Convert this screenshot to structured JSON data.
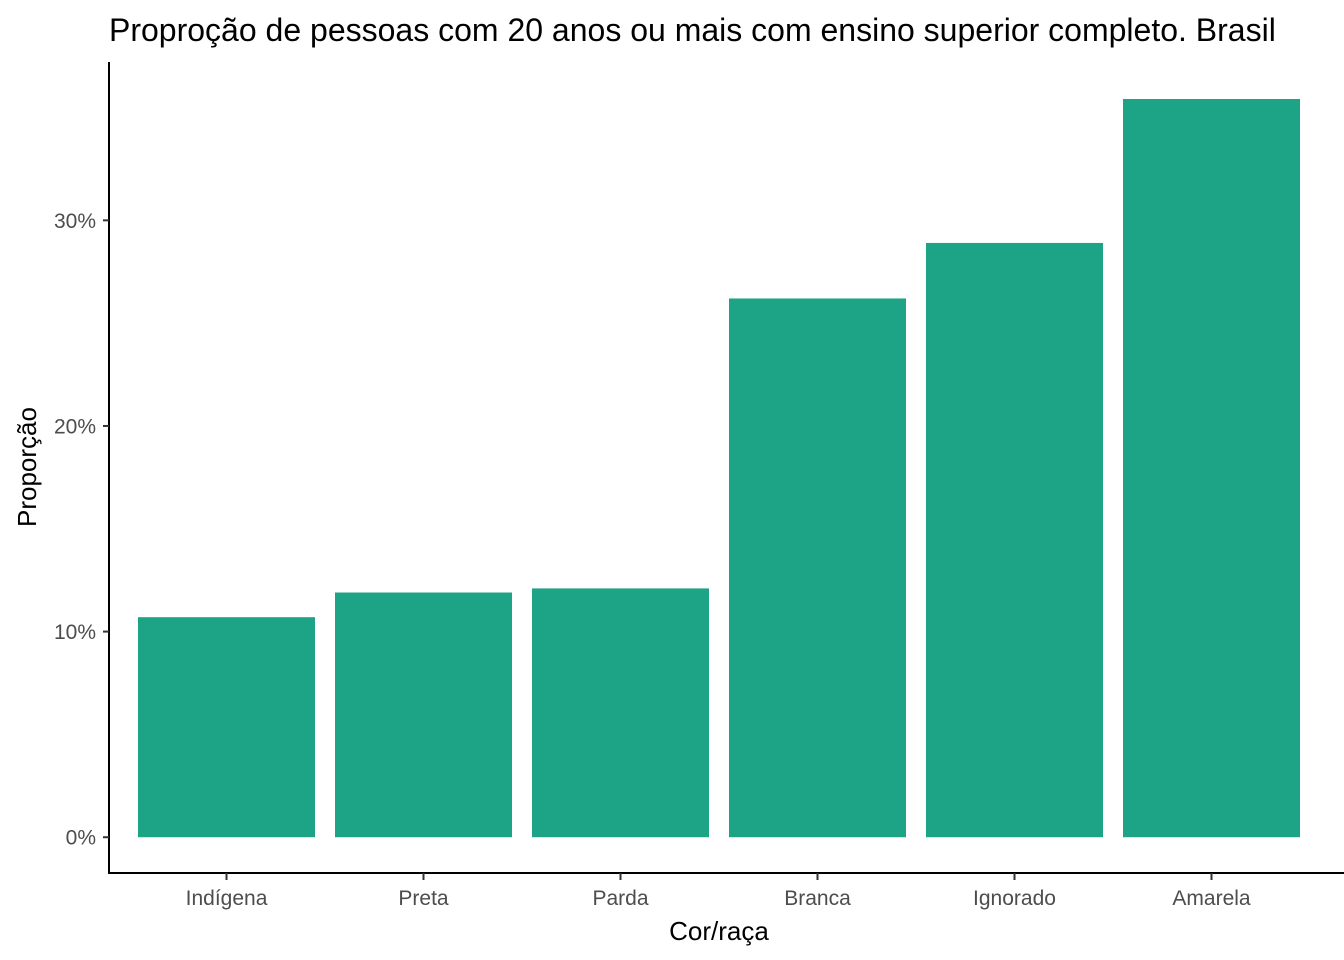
{
  "chart_data": {
    "type": "bar",
    "title": "Proproção de pessoas com 20 anos ou mais com ensino superior completo. Brasil",
    "xlabel": "Cor/raça",
    "ylabel": "Proporção",
    "categories": [
      "Indígena",
      "Preta",
      "Parda",
      "Branca",
      "Ignorado",
      "Amarela"
    ],
    "values": [
      10.7,
      11.9,
      12.1,
      26.2,
      28.9,
      35.9
    ],
    "y_ticks": [
      0,
      10,
      20,
      30
    ],
    "y_tick_labels": [
      "0%",
      "10%",
      "20%",
      "30%"
    ],
    "ylim": [
      -1.74,
      37.7
    ],
    "bar_color": "#1DA386",
    "grid": false,
    "legend": "none"
  }
}
